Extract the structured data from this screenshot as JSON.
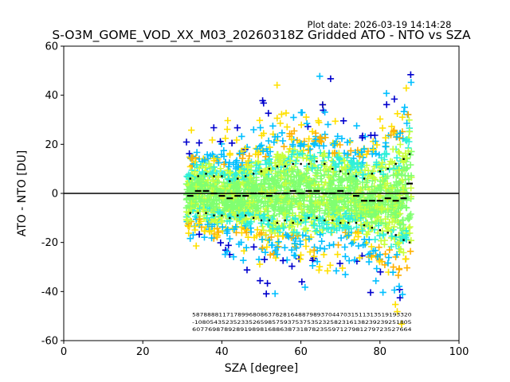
{
  "chart_data": {
    "type": "scatter",
    "plot_date": "Plot date: 2026-03-19 14:14:28",
    "title": "S-O3M_GOME_VOD_XX_M03_20260318Z Gridded ATO - NTO vs SZA",
    "xlabel": "SZA [degree]",
    "ylabel": "ATO - NTO [DU]",
    "xlim": [
      0,
      100
    ],
    "ylim": [
      -60,
      60
    ],
    "xticks": [
      0,
      20,
      40,
      60,
      80,
      100
    ],
    "yticks": [
      -60,
      -40,
      -20,
      0,
      20,
      40,
      60
    ],
    "zero_line": 0,
    "point_cloud": {
      "sza_range": [
        31,
        88
      ],
      "colors": [
        "#0000cd",
        "#00bfff",
        "#2ef0d8",
        "#80ff70",
        "#c8ff3c",
        "#ffe000",
        "#ffb000"
      ],
      "marker": "+"
    },
    "series": [
      {
        "name": "median",
        "style": "black-dash",
        "x": [
          32,
          34,
          36,
          38,
          40,
          42,
          44,
          46,
          48,
          50,
          52,
          54,
          56,
          58,
          60,
          62,
          64,
          66,
          68,
          70,
          72,
          74,
          76,
          78,
          80,
          82,
          84,
          86,
          87.5
        ],
        "values": [
          -1,
          1,
          1,
          0,
          -1,
          -2,
          -1,
          -1,
          0,
          0,
          -1,
          0,
          0,
          1,
          0,
          1,
          1,
          0,
          0,
          1,
          0,
          -1,
          -3,
          -3,
          -3,
          -2,
          -3,
          -2,
          4
        ]
      },
      {
        "name": "upper spread",
        "style": "black-dot",
        "x": [
          32,
          34,
          36,
          38,
          40,
          42,
          44,
          46,
          48,
          50,
          52,
          54,
          56,
          58,
          60,
          62,
          64,
          66,
          68,
          70,
          72,
          74,
          76,
          78,
          80,
          82,
          84,
          86,
          87.5
        ],
        "values": [
          6,
          7,
          8,
          7,
          7,
          5,
          6,
          7,
          8,
          9,
          10,
          11,
          11,
          12,
          12,
          12,
          13,
          12,
          10,
          9,
          8,
          7,
          6,
          8,
          9,
          10,
          12,
          14,
          16
        ]
      },
      {
        "name": "lower spread",
        "style": "black-dot",
        "x": [
          32,
          34,
          36,
          38,
          40,
          42,
          44,
          46,
          48,
          50,
          52,
          54,
          56,
          58,
          60,
          62,
          64,
          66,
          68,
          70,
          72,
          74,
          76,
          78,
          80,
          82,
          84,
          86,
          87.5
        ],
        "values": [
          -8,
          -8,
          -8,
          -9,
          -9,
          -10,
          -9,
          -9,
          -10,
          -11,
          -11,
          -12,
          -11,
          -12,
          -11,
          -10,
          -10,
          -11,
          -11,
          -12,
          -12,
          -12,
          -13,
          -14,
          -15,
          -16,
          -17,
          -19,
          -20
        ]
      }
    ],
    "count_annotations": {
      "rows": [
        "5878888117178996808637828164887989370447031511313519193320",
        "-10805435235233526598575937537535232582316138239239251805",
        "6077698789289198981688638731878235597127981279723527664"
      ],
      "y_values": [
        -49.5,
        -52.5,
        -55.5
      ],
      "x_range": [
        32.5,
        88
      ]
    }
  }
}
